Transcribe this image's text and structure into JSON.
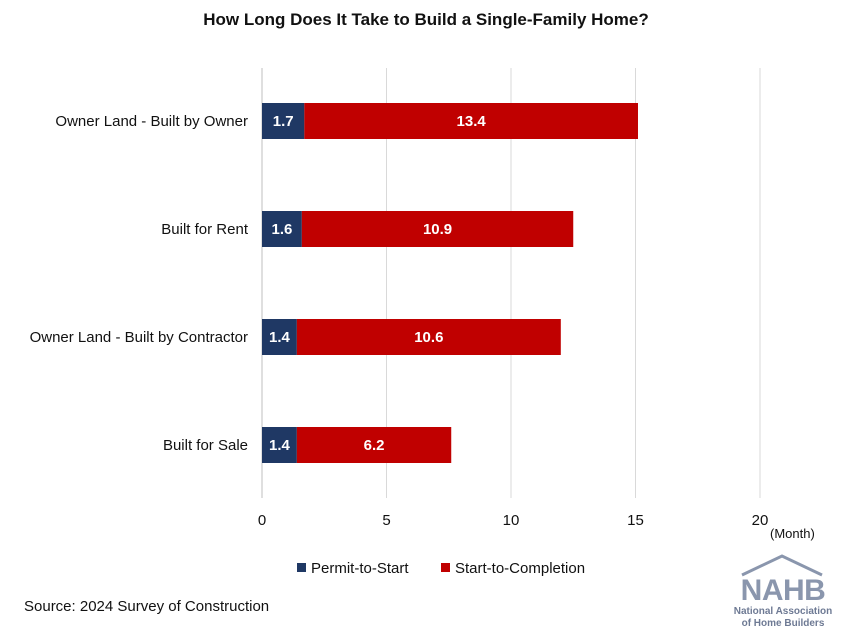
{
  "chart_data": {
    "type": "bar",
    "orientation": "horizontal",
    "stacked": true,
    "title": "How Long Does It Take to Build a Single-Family Home?",
    "unit_label": "(Month)",
    "categories": [
      "Owner Land - Built by Owner",
      "Built for Rent",
      "Owner Land - Built by Contractor",
      "Built for Sale"
    ],
    "series": [
      {
        "name": "Permit-to-Start",
        "color": "#1f3864",
        "values": [
          1.7,
          1.6,
          1.4,
          1.4
        ]
      },
      {
        "name": "Start-to-Completion",
        "color": "#c00000",
        "values": [
          13.4,
          10.9,
          10.6,
          6.2
        ]
      }
    ],
    "xlim": [
      0,
      20
    ],
    "xticks": [
      0,
      5,
      10,
      15,
      20
    ],
    "grid": true,
    "legend_position": "bottom"
  },
  "source": "Source: 2024 Survey of Construction",
  "logo": {
    "word": "NAHB",
    "line1": "National Association",
    "line2": "of Home Builders",
    "color": "#8a96ad"
  }
}
